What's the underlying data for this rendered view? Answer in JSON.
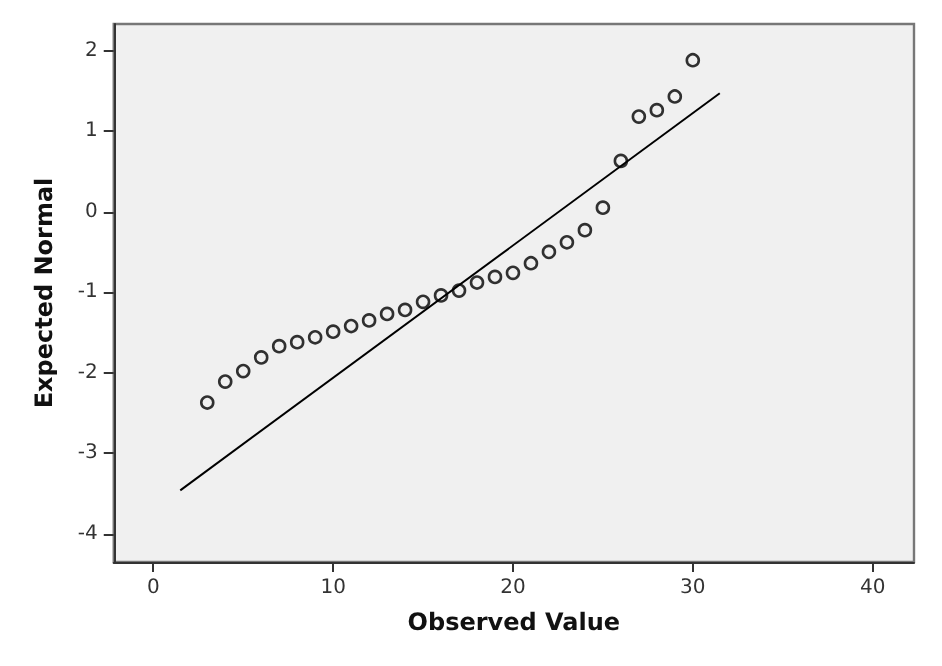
{
  "chart_data": {
    "type": "scatter",
    "xlabel": "Observed Value",
    "ylabel": "Expected Normal",
    "xlim": [
      -2.2,
      42.3
    ],
    "xticks": [
      0,
      10,
      20,
      30,
      40
    ],
    "ylim": [
      -4.35,
      2.33
    ],
    "yticks": [
      -4,
      -3,
      -2,
      -1,
      0,
      1,
      2
    ],
    "grid": false,
    "series": [
      {
        "marker": "circle",
        "color": "#000000",
        "x": [
          3,
          4,
          5,
          6,
          7,
          8,
          9,
          10,
          11,
          12,
          13,
          14,
          15,
          16,
          17,
          18,
          19,
          20,
          21,
          22,
          23,
          24,
          25,
          26,
          27,
          28,
          29,
          30
        ],
        "values": [
          -2.37,
          -2.11,
          -1.98,
          -1.81,
          -1.67,
          -1.62,
          -1.56,
          -1.49,
          -1.42,
          -1.35,
          -1.27,
          -1.22,
          -1.12,
          -1.04,
          -0.98,
          -0.88,
          -0.81,
          -0.76,
          -0.64,
          -0.5,
          -0.38,
          -0.23,
          0.05,
          0.63,
          1.18,
          1.26,
          1.43,
          1.88
        ]
      },
      {
        "type": "line",
        "color": "#000000",
        "x": [
          1.5,
          31.5
        ],
        "values": [
          -3.46,
          1.47
        ]
      }
    ]
  }
}
